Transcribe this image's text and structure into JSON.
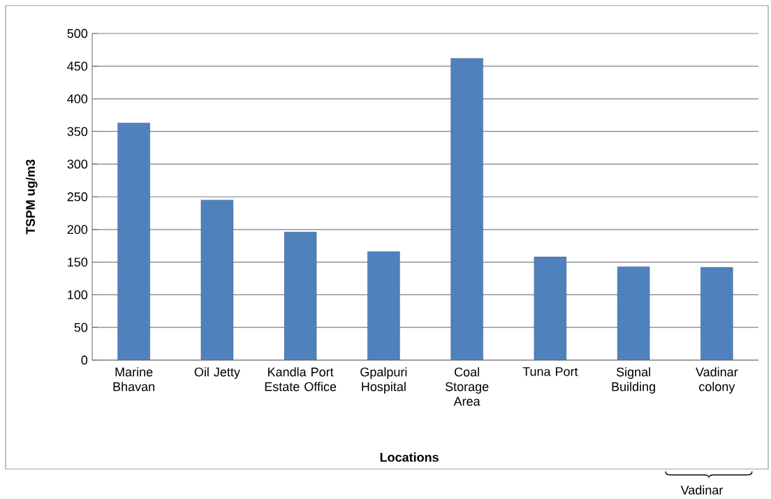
{
  "chart_data": {
    "type": "bar",
    "xlabel": "Locations",
    "ylabel": "TSPM ug/m3",
    "categories": [
      "Marine Bhavan",
      "Oil Jetty",
      "Kandla Port Estate Office",
      "Gpalpuri Hospital",
      "Coal Storage Area",
      "Tuna Port",
      "Signal Building",
      "Vadinar colony"
    ],
    "values": [
      363,
      245,
      196,
      166,
      462,
      158,
      143,
      142
    ],
    "color": "#4f81bd",
    "ylim": [
      0,
      500
    ],
    "yticks": [
      0,
      50,
      100,
      150,
      200,
      250,
      300,
      350,
      400,
      450,
      500
    ],
    "grid": "y",
    "annotations": [
      "Vadinar"
    ]
  }
}
